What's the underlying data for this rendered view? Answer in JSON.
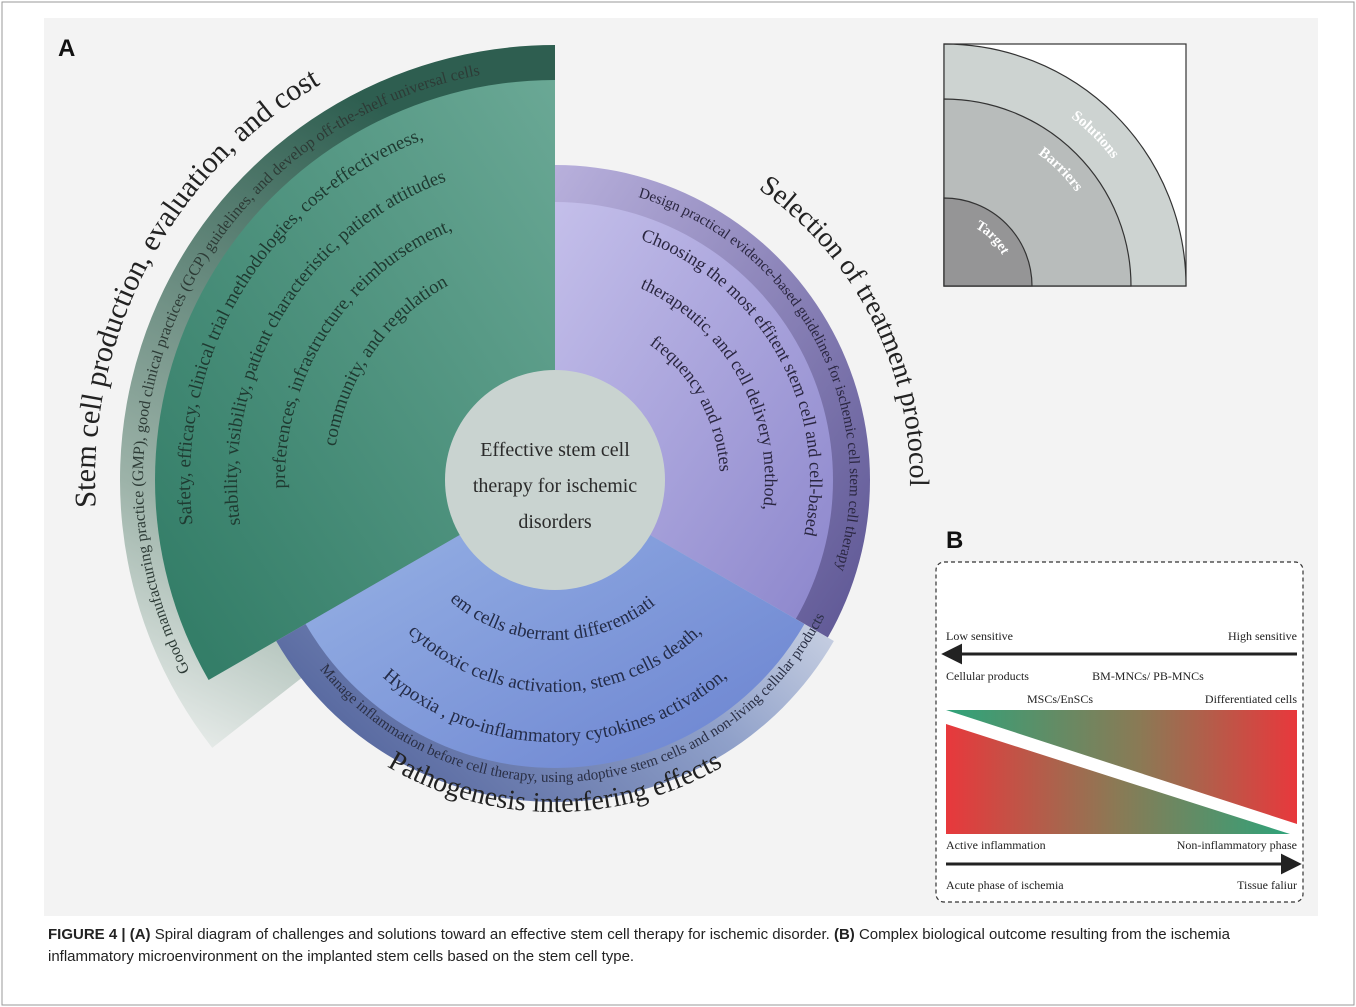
{
  "panel_a": {
    "label": "A",
    "center_text": [
      "Effective stem cell",
      "therapy for ischemic",
      "disorders"
    ],
    "sectors": {
      "production": {
        "title": "Stem cell production, evaluation, and cost",
        "outer": "Good manufacturing practice (GMP), good clinical practices (GCP) guidelines, and develop off-the-shelf universal cells",
        "inner": [
          "Safety, efficacy, clinical trial methodologies, cost-effectiveness,",
          "stability, visibility, patient characteristic, patient attitudes",
          "preferences, infrastructure, reimbursement,",
          "community, and regulation"
        ]
      },
      "treatment": {
        "title": "Selection of treatment protocol",
        "outer": "Design practical evidence-based guidelines for ischemic cell stem cell therapy",
        "inner": [
          "Choosing the most effitent stem cell and cell-based",
          "therapeutic, and cell delivery method,",
          "frequency and routes"
        ]
      },
      "pathogenesis": {
        "title": "Pathogenesis interfering effects",
        "outer": "Manage inflammation before cell therapy, using adoptive stem cells and non-living cellular products",
        "inner": [
          "Hypoxia , pro-inflammatory cytokines activation,",
          "cytotoxic cells activation, stem cells death,",
          "stem cells aberrant differentiation"
        ]
      }
    },
    "legend": {
      "outer": "Solutions",
      "middle": "Barriers",
      "inner": "Target"
    }
  },
  "panel_b": {
    "label": "B",
    "left_top": "Low sensitive",
    "right_top": "High sensitive",
    "cell_labels": [
      "Cellular products",
      "BM-MNCs/ PB-MNCs",
      "MSCs/EnSCs",
      "Differentiated cells"
    ],
    "left_bottom": "Active inflammation",
    "right_bottom": "Non-inflammatory phase",
    "axis_left": "Acute phase of ischemia",
    "axis_right": "Tissue faliur"
  },
  "caption": {
    "lead": "FIGURE 4 | ",
    "a_label": "(A)",
    "a_text": " Spiral diagram of challenges and solutions toward an effective stem cell therapy for ischemic disorder. ",
    "b_label": "(B)",
    "b_text": " Complex biological outcome resulting from the ischemia inflammatory microenvironment on the implanted stem cells based on the stem cell type."
  },
  "colors": {
    "production": "#3f8a72",
    "treatment": "#8f85c4",
    "pathogenesis": "#7f9ad8",
    "center": "#c9d3d0",
    "red": "#e03a3a",
    "green": "#3aa37a"
  }
}
